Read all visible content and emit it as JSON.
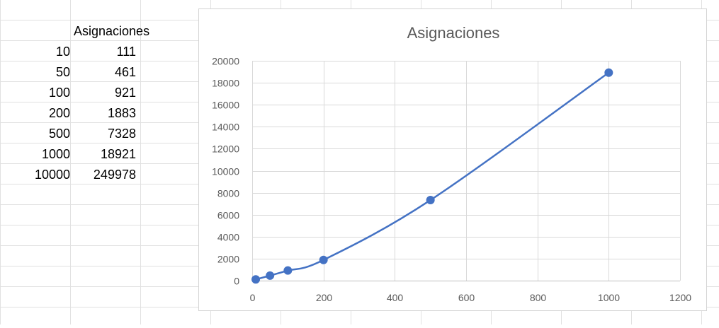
{
  "spreadsheet": {
    "header": {
      "b": "Asignaciones"
    },
    "rows": [
      {
        "a": "10",
        "b": "111"
      },
      {
        "a": "50",
        "b": "461"
      },
      {
        "a": "100",
        "b": "921"
      },
      {
        "a": "200",
        "b": "1883"
      },
      {
        "a": "500",
        "b": "7328"
      },
      {
        "a": "1000",
        "b": "18921"
      },
      {
        "a": "10000",
        "b": "249978"
      }
    ]
  },
  "chart_data": {
    "type": "scatter",
    "title": "Asignaciones",
    "x": [
      10,
      50,
      100,
      200,
      500,
      1000
    ],
    "series": [
      {
        "values": [
          111,
          461,
          921,
          1883,
          7328,
          18921
        ],
        "color": "#4472c4",
        "smooth": true
      }
    ],
    "xlim": [
      0,
      1200
    ],
    "ylim": [
      0,
      20000
    ],
    "x_ticks": [
      "0",
      "200",
      "400",
      "600",
      "800",
      "1000",
      "1200"
    ],
    "y_ticks": [
      "0",
      "2000",
      "4000",
      "6000",
      "8000",
      "10000",
      "12000",
      "14000",
      "16000",
      "18000",
      "20000"
    ],
    "grid": true,
    "legend": "none"
  }
}
